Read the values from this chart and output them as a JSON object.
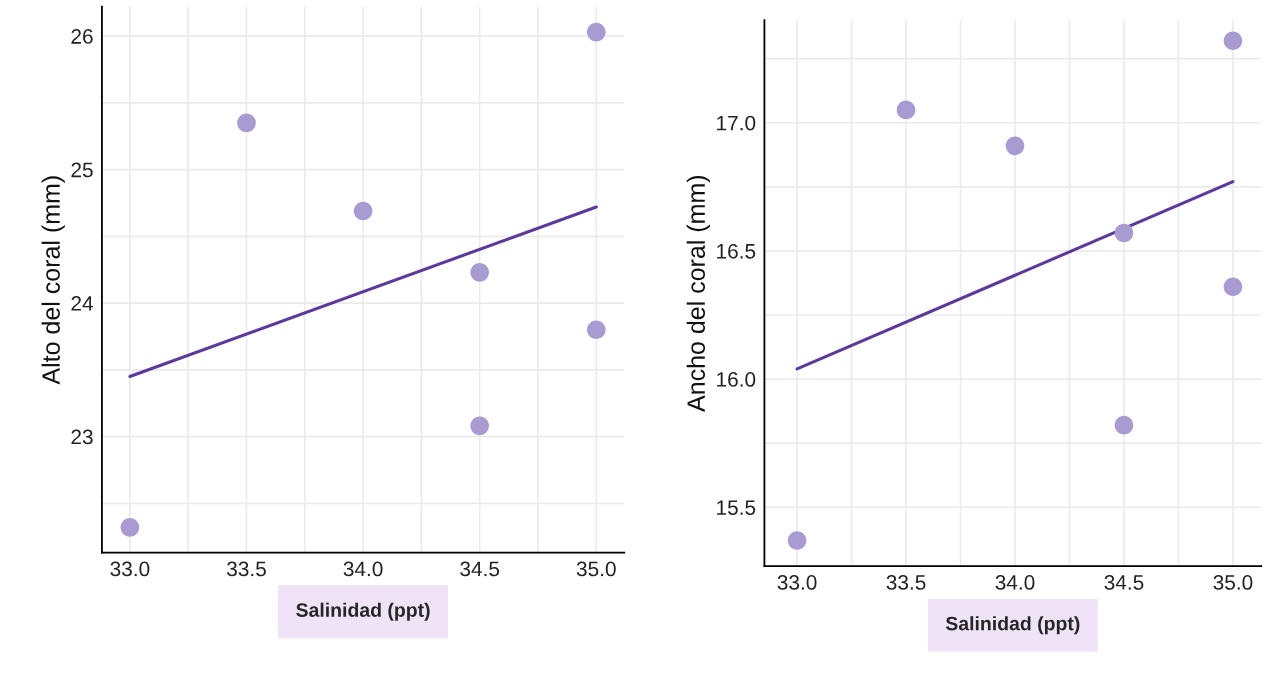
{
  "chart_data": [
    {
      "type": "scatter",
      "xlabel": "Salinidad (ppt)",
      "ylabel": "Alto del coral (mm)",
      "xlim": [
        32.88,
        35.12
      ],
      "ylim": [
        22.13,
        26.22
      ],
      "xticks": [
        {
          "value": 33,
          "label": "33.0"
        },
        {
          "value": 33.25,
          "label": null
        },
        {
          "value": 33.5,
          "label": "33.5"
        },
        {
          "value": 33.75,
          "label": null
        },
        {
          "value": 34,
          "label": "34.0"
        },
        {
          "value": 34.25,
          "label": null
        },
        {
          "value": 34.5,
          "label": "34.5"
        },
        {
          "value": 34.75,
          "label": null
        },
        {
          "value": 35,
          "label": "35.0"
        }
      ],
      "yticks": [
        {
          "value": 22.5,
          "label": null
        },
        23,
        {
          "value": 23.5,
          "label": null
        },
        24,
        {
          "value": 24.5,
          "label": null
        },
        25,
        {
          "value": 25.5,
          "label": null
        },
        26
      ],
      "grid": true,
      "series": [
        {
          "marker": "circle",
          "color": "#a99bd1",
          "x": [
            33.0,
            33.5,
            34.0,
            34.5,
            34.5,
            35.0,
            35.0
          ],
          "values": [
            22.32,
            25.35,
            24.69,
            24.23,
            23.08,
            26.03,
            23.8
          ]
        },
        {
          "type": "line",
          "color": "#5b3a9b",
          "x": [
            33.0,
            35.0
          ],
          "values": [
            23.45,
            24.72
          ]
        }
      ]
    },
    {
      "type": "scatter",
      "xlabel": "Salinidad (ppt)",
      "ylabel": "Ancho del coral (mm)",
      "xlim": [
        32.85,
        35.13
      ],
      "ylim": [
        15.27,
        17.4
      ],
      "xticks": [
        {
          "value": 33,
          "label": "33.0"
        },
        {
          "value": 33.25,
          "label": null
        },
        {
          "value": 33.5,
          "label": "33.5"
        },
        {
          "value": 33.75,
          "label": null
        },
        {
          "value": 34,
          "label": "34.0"
        },
        {
          "value": 34.25,
          "label": null
        },
        {
          "value": 34.5,
          "label": "34.5"
        },
        {
          "value": 34.75,
          "label": null
        },
        {
          "value": 35,
          "label": "35.0"
        }
      ],
      "yticks": [
        15.5,
        {
          "value": 15.75,
          "label": null
        },
        {
          "value": 16,
          "label": "16.0"
        },
        {
          "value": 16.25,
          "label": null
        },
        16.5,
        {
          "value": 16.75,
          "label": null
        },
        {
          "value": 17,
          "label": "17.0"
        },
        {
          "value": 17.25,
          "label": null
        }
      ],
      "grid": true,
      "series": [
        {
          "marker": "circle",
          "color": "#a99bd1",
          "x": [
            33.0,
            33.5,
            34.0,
            34.5,
            34.5,
            35.0,
            35.0
          ],
          "values": [
            15.37,
            17.05,
            16.91,
            16.57,
            15.82,
            17.32,
            16.36
          ]
        },
        {
          "type": "line",
          "color": "#5b3a9b",
          "x": [
            33.0,
            35.0
          ],
          "values": [
            16.04,
            16.77
          ]
        }
      ]
    }
  ]
}
